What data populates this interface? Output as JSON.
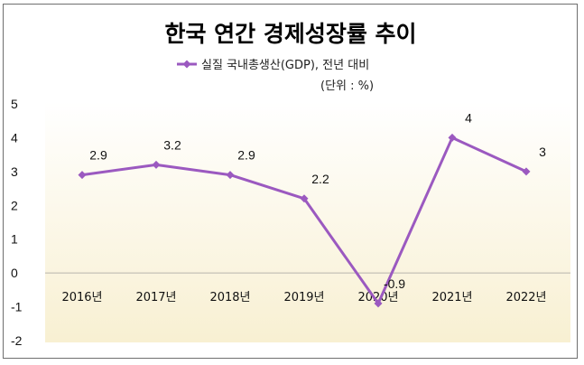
{
  "colors": {
    "series": "#9b59c0",
    "zero_line": "#b7b3ad",
    "plot_bg_top": "#ffffff",
    "plot_bg_bottom": "#f8f0d2"
  },
  "chart_data": {
    "type": "line",
    "title": "한국 연간 경제성장률 추이",
    "unit_note": "(단위 : %)",
    "x": [
      "2016년",
      "2017년",
      "2018년",
      "2019년",
      "2020년",
      "2021년",
      "2022년"
    ],
    "series": [
      {
        "name": "실질 국내총생산(GDP), 전년 대비",
        "values": [
          2.9,
          3.2,
          2.9,
          2.2,
          -0.9,
          4,
          3
        ],
        "value_labels": [
          "2.9",
          "3.2",
          "2.9",
          "2.2",
          "-0.9",
          "4",
          "3"
        ],
        "marker": "diamond"
      }
    ],
    "ylim": [
      -2,
      5
    ],
    "yticks": [
      "-2",
      "-1",
      "0",
      "1",
      "2",
      "3",
      "4",
      "5"
    ],
    "grid": false,
    "legend_position": "top-center"
  }
}
